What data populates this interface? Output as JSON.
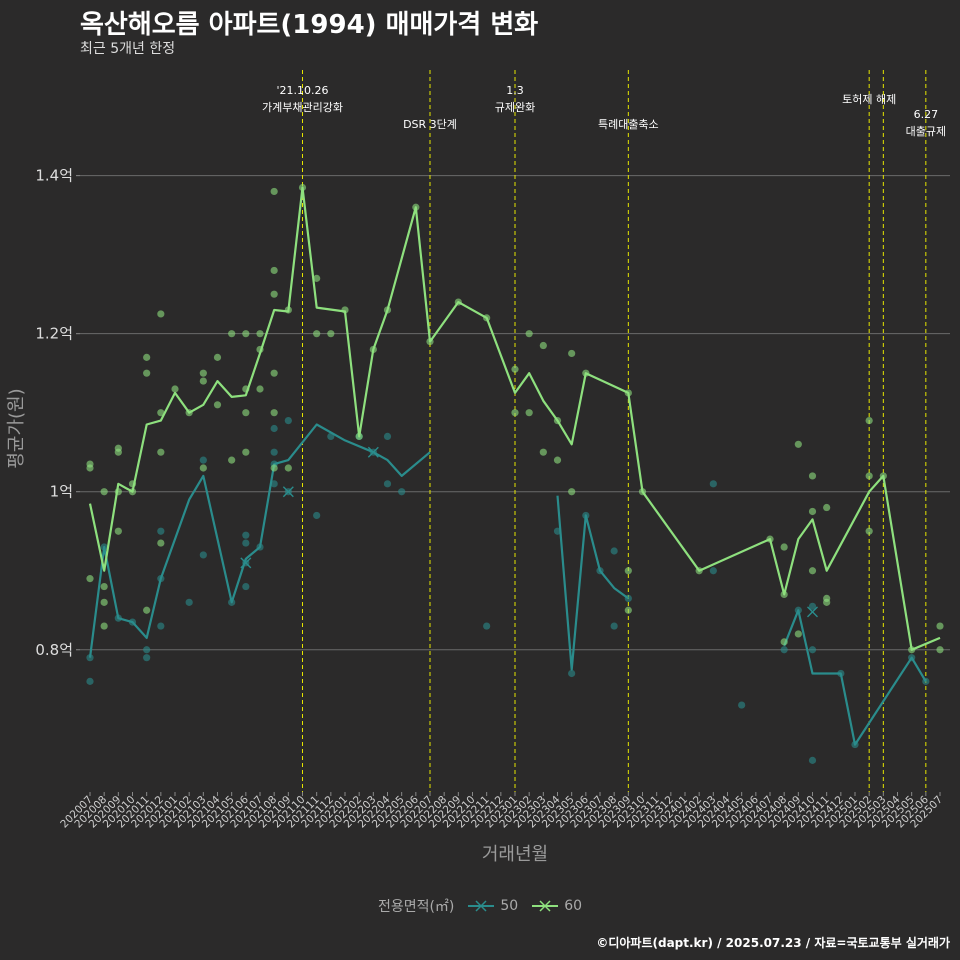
{
  "title": "옥산해오름 아파트(1994) 매매가격 변화",
  "subtitle": "최근 5개년 한정",
  "caption": "©디아파트(dapt.kr) / 2025.07.23 / 자료=국토교통부 실거래가",
  "legend": {
    "title": "전용면적(㎡)",
    "items": [
      {
        "label": "50",
        "color": "#2a8c8c"
      },
      {
        "label": "60",
        "color": "#8ee07e"
      }
    ]
  },
  "chart_data": {
    "type": "line",
    "xlabel": "거래년월",
    "ylabel": "평균가(원)",
    "ylim": [
      0.62,
      1.54
    ],
    "y_ticks": [
      0.8,
      1.0,
      1.2,
      1.4
    ],
    "y_tick_labels": [
      "0.8억",
      "1억",
      "1.2억",
      "1.4억"
    ],
    "grid": "horizontal",
    "categories": [
      "202007",
      "202008",
      "202009",
      "202010",
      "202011",
      "202012",
      "202101",
      "202102",
      "202103",
      "202104",
      "202105",
      "202106",
      "202107",
      "202108",
      "202109",
      "202110",
      "202111",
      "202112",
      "202201",
      "202202",
      "202203",
      "202204",
      "202205",
      "202206",
      "202207",
      "202208",
      "202209",
      "202210",
      "202211",
      "202212",
      "202301",
      "202302",
      "202303",
      "202304",
      "202305",
      "202306",
      "202307",
      "202308",
      "202309",
      "202310",
      "202311",
      "202312",
      "202401",
      "202402",
      "202403",
      "202404",
      "202405",
      "202406",
      "202407",
      "202408",
      "202409",
      "202410",
      "202411",
      "202412",
      "202501",
      "202502",
      "202503",
      "202504",
      "202505",
      "202506",
      "202507"
    ],
    "series": [
      {
        "name": "50",
        "color": "#2a8c8c",
        "lines": [
          [
            [
              "202007",
              0.79
            ],
            [
              "202008",
              0.93
            ],
            [
              "202009",
              0.84
            ],
            [
              "202010",
              0.835
            ],
            [
              "202011",
              0.815
            ],
            [
              "202012",
              0.89
            ],
            [
              "202102",
              0.99
            ],
            [
              "202103",
              1.02
            ],
            [
              "202105",
              0.86
            ],
            [
              "202106",
              0.915
            ],
            [
              "202107",
              0.93
            ],
            [
              "202108",
              1.035
            ],
            [
              "202109",
              1.04
            ],
            [
              "202111",
              1.085
            ],
            [
              "202201",
              1.065
            ],
            [
              "202203",
              1.05
            ],
            [
              "202204",
              1.04
            ],
            [
              "202205",
              1.02
            ],
            [
              "202207",
              1.05
            ]
          ],
          [
            [
              "202304",
              0.995
            ],
            [
              "202305",
              0.775
            ],
            [
              "202306",
              0.97
            ],
            [
              "202307",
              0.9
            ],
            [
              "202308",
              0.878
            ],
            [
              "202309",
              0.865
            ]
          ],
          [
            [
              "202408",
              0.805
            ],
            [
              "202409",
              0.85
            ],
            [
              "202410",
              0.77
            ],
            [
              "202412",
              0.77
            ],
            [
              "202501",
              0.68
            ],
            [
              "202505",
              0.79
            ],
            [
              "202506",
              0.76
            ]
          ]
        ],
        "points": [
          [
            "202007",
            0.76
          ],
          [
            "202007",
            0.79
          ],
          [
            "202008",
            0.93
          ],
          [
            "202009",
            0.84
          ],
          [
            "202010",
            0.835
          ],
          [
            "202011",
            0.79
          ],
          [
            "202011",
            0.8
          ],
          [
            "202012",
            0.83
          ],
          [
            "202012",
            0.89
          ],
          [
            "202012",
            0.95
          ],
          [
            "202102",
            0.86
          ],
          [
            "202103",
            0.92
          ],
          [
            "202103",
            1.04
          ],
          [
            "202105",
            0.86
          ],
          [
            "202106",
            0.88
          ],
          [
            "202106",
            0.91
          ],
          [
            "202106",
            0.935
          ],
          [
            "202106",
            0.945
          ],
          [
            "202107",
            0.93
          ],
          [
            "202108",
            1.01
          ],
          [
            "202108",
            1.035
          ],
          [
            "202108",
            1.05
          ],
          [
            "202108",
            1.08
          ],
          [
            "202109",
            1.0
          ],
          [
            "202109",
            1.09
          ],
          [
            "202111",
            0.97
          ],
          [
            "202112",
            1.07
          ],
          [
            "202202",
            1.07
          ],
          [
            "202203",
            1.05
          ],
          [
            "202204",
            1.01
          ],
          [
            "202204",
            1.07
          ],
          [
            "202205",
            1.0
          ],
          [
            "202211",
            0.83
          ],
          [
            "202304",
            0.95
          ],
          [
            "202305",
            0.77
          ],
          [
            "202306",
            0.97
          ],
          [
            "202307",
            0.9
          ],
          [
            "202308",
            0.83
          ],
          [
            "202308",
            0.925
          ],
          [
            "202309",
            0.865
          ],
          [
            "202403",
            0.9
          ],
          [
            "202403",
            1.01
          ],
          [
            "202405",
            0.73
          ],
          [
            "202408",
            0.8
          ],
          [
            "202409",
            0.85
          ],
          [
            "202410",
            0.66
          ],
          [
            "202410",
            0.8
          ],
          [
            "202410",
            0.855
          ],
          [
            "202412",
            0.77
          ],
          [
            "202501",
            0.68
          ],
          [
            "202505",
            0.79
          ],
          [
            "202506",
            0.76
          ]
        ],
        "markers": [
          [
            "202106",
            0.91
          ],
          [
            "202109",
            1.0
          ],
          [
            "202203",
            1.05
          ],
          [
            "202410",
            0.848
          ]
        ]
      },
      {
        "name": "60",
        "color": "#8ee07e",
        "lines": [
          [
            [
              "202007",
              0.985
            ],
            [
              "202008",
              0.9
            ],
            [
              "202009",
              1.01
            ],
            [
              "202010",
              1.0
            ],
            [
              "202011",
              1.085
            ],
            [
              "202012",
              1.09
            ],
            [
              "202101",
              1.125
            ],
            [
              "202102",
              1.1
            ],
            [
              "202103",
              1.11
            ],
            [
              "202104",
              1.14
            ],
            [
              "202105",
              1.12
            ],
            [
              "202106",
              1.122
            ],
            [
              "202107",
              1.175
            ],
            [
              "202108",
              1.23
            ],
            [
              "202109",
              1.228
            ],
            [
              "202110",
              1.385
            ],
            [
              "202111",
              1.233
            ],
            [
              "202201",
              1.228
            ],
            [
              "202202",
              1.07
            ],
            [
              "202203",
              1.18
            ],
            [
              "202204",
              1.23
            ],
            [
              "202206",
              1.36
            ],
            [
              "202207",
              1.19
            ],
            [
              "202209",
              1.24
            ],
            [
              "202211",
              1.22
            ],
            [
              "202301",
              1.125
            ],
            [
              "202302",
              1.15
            ],
            [
              "202303",
              1.115
            ],
            [
              "202304",
              1.09
            ],
            [
              "202305",
              1.06
            ],
            [
              "202306",
              1.15
            ],
            [
              "202309",
              1.125
            ],
            [
              "202310",
              1.0
            ],
            [
              "202402",
              0.9
            ],
            [
              "202407",
              0.94
            ],
            [
              "202408",
              0.87
            ],
            [
              "202409",
              0.94
            ],
            [
              "202410",
              0.965
            ],
            [
              "202411",
              0.9
            ],
            [
              "202502",
              1.0
            ],
            [
              "202503",
              1.02
            ],
            [
              "202505",
              0.8
            ],
            [
              "202507",
              0.815
            ]
          ]
        ],
        "points": [
          [
            "202007",
            0.89
          ],
          [
            "202007",
            1.03
          ],
          [
            "202007",
            1.035
          ],
          [
            "202008",
            0.83
          ],
          [
            "202008",
            0.86
          ],
          [
            "202008",
            0.88
          ],
          [
            "202008",
            1.0
          ],
          [
            "202009",
            0.95
          ],
          [
            "202009",
            1.0
          ],
          [
            "202009",
            1.05
          ],
          [
            "202009",
            1.055
          ],
          [
            "202010",
            1.0
          ],
          [
            "202010",
            1.01
          ],
          [
            "202011",
            0.85
          ],
          [
            "202011",
            1.15
          ],
          [
            "202011",
            1.17
          ],
          [
            "202012",
            0.935
          ],
          [
            "202012",
            1.05
          ],
          [
            "202012",
            1.1
          ],
          [
            "202012",
            1.225
          ],
          [
            "202101",
            1.13
          ],
          [
            "202102",
            1.1
          ],
          [
            "202103",
            1.03
          ],
          [
            "202103",
            1.14
          ],
          [
            "202103",
            1.15
          ],
          [
            "202104",
            1.11
          ],
          [
            "202104",
            1.17
          ],
          [
            "202105",
            1.04
          ],
          [
            "202105",
            1.2
          ],
          [
            "202106",
            1.05
          ],
          [
            "202106",
            1.1
          ],
          [
            "202106",
            1.13
          ],
          [
            "202106",
            1.2
          ],
          [
            "202107",
            1.13
          ],
          [
            "202107",
            1.18
          ],
          [
            "202107",
            1.2
          ],
          [
            "202108",
            1.03
          ],
          [
            "202108",
            1.1
          ],
          [
            "202108",
            1.15
          ],
          [
            "202108",
            1.25
          ],
          [
            "202108",
            1.28
          ],
          [
            "202108",
            1.38
          ],
          [
            "202109",
            1.03
          ],
          [
            "202109",
            1.23
          ],
          [
            "202110",
            1.385
          ],
          [
            "202111",
            1.2
          ],
          [
            "202111",
            1.27
          ],
          [
            "202112",
            1.2
          ],
          [
            "202201",
            1.23
          ],
          [
            "202202",
            1.07
          ],
          [
            "202203",
            1.18
          ],
          [
            "202204",
            1.23
          ],
          [
            "202206",
            1.36
          ],
          [
            "202207",
            1.19
          ],
          [
            "202209",
            1.24
          ],
          [
            "202211",
            1.22
          ],
          [
            "202301",
            1.1
          ],
          [
            "202301",
            1.155
          ],
          [
            "202302",
            1.1
          ],
          [
            "202302",
            1.2
          ],
          [
            "202303",
            1.05
          ],
          [
            "202303",
            1.185
          ],
          [
            "202304",
            1.04
          ],
          [
            "202304",
            1.09
          ],
          [
            "202305",
            1.0
          ],
          [
            "202305",
            1.175
          ],
          [
            "202306",
            1.15
          ],
          [
            "202309",
            0.85
          ],
          [
            "202309",
            0.9
          ],
          [
            "202309",
            1.125
          ],
          [
            "202310",
            1.0
          ],
          [
            "202402",
            0.9
          ],
          [
            "202407",
            0.94
          ],
          [
            "202408",
            0.81
          ],
          [
            "202408",
            0.87
          ],
          [
            "202408",
            0.93
          ],
          [
            "202409",
            0.82
          ],
          [
            "202409",
            1.06
          ],
          [
            "202410",
            0.9
          ],
          [
            "202410",
            0.975
          ],
          [
            "202410",
            1.02
          ],
          [
            "202411",
            0.86
          ],
          [
            "202411",
            0.865
          ],
          [
            "202411",
            0.98
          ],
          [
            "202502",
            0.95
          ],
          [
            "202502",
            1.02
          ],
          [
            "202502",
            1.09
          ],
          [
            "202503",
            1.02
          ],
          [
            "202505",
            0.8
          ],
          [
            "202507",
            0.8
          ],
          [
            "202507",
            0.83
          ]
        ],
        "markers": []
      }
    ],
    "vlines": [
      {
        "at": "202110",
        "lines": [
          "'21.10.26",
          "가계부채관리강화"
        ]
      },
      {
        "at": "202207",
        "lines": [
          "DSR 3단계"
        ]
      },
      {
        "at": "202301",
        "lines": [
          "1.3",
          "규제완화"
        ]
      },
      {
        "at": "202309",
        "lines": [
          "특례대출축소"
        ]
      },
      {
        "at": "202502",
        "lines": [
          "토허제 해제"
        ]
      },
      {
        "at": "202503",
        "lines": []
      },
      {
        "at": "202506",
        "lines": [
          "6.27",
          "대출규제"
        ]
      }
    ],
    "vline_color": "#e6e600"
  }
}
